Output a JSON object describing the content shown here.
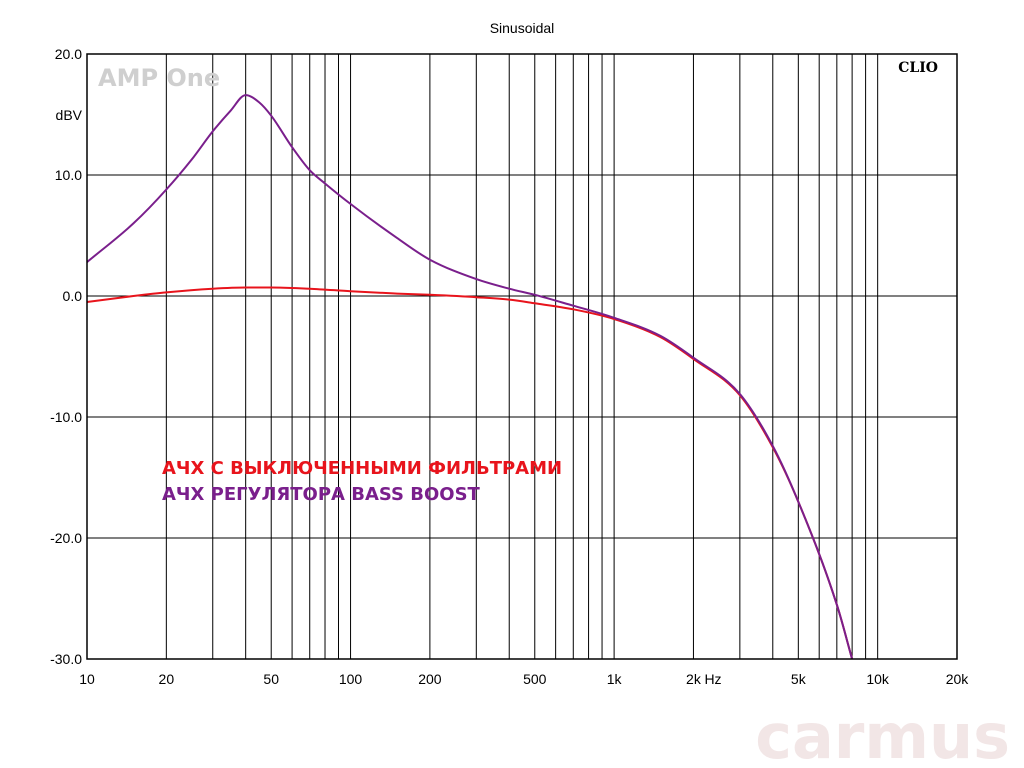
{
  "chart_data": {
    "type": "line",
    "title": "Sinusoidal",
    "ylabel": "dBV",
    "xlabel": "Hz",
    "x_scale": "log",
    "xlim": [
      10,
      20000
    ],
    "ylim": [
      -30,
      20
    ],
    "grid": true,
    "x_tick_labels": [
      {
        "x": 10,
        "label": "10"
      },
      {
        "x": 20,
        "label": "20"
      },
      {
        "x": 50,
        "label": "50"
      },
      {
        "x": 100,
        "label": "100"
      },
      {
        "x": 200,
        "label": "200"
      },
      {
        "x": 500,
        "label": "500"
      },
      {
        "x": 1000,
        "label": "1k"
      },
      {
        "x": 2000,
        "label": "2k"
      },
      {
        "x": 5000,
        "label": "5k"
      },
      {
        "x": 10000,
        "label": "10k"
      },
      {
        "x": 20000,
        "label": "20k"
      }
    ],
    "y_tick_labels": [
      {
        "y": 20,
        "label": "20.0"
      },
      {
        "y": 10,
        "label": "10.0"
      },
      {
        "y": 0,
        "label": "0.0"
      },
      {
        "y": -10,
        "label": "-10.0"
      },
      {
        "y": -20,
        "label": "-20.0"
      },
      {
        "y": -30,
        "label": "-30.0"
      }
    ],
    "brand_label": "CLIO",
    "device_label": "AMP One",
    "watermark": "carmus",
    "series": [
      {
        "name": "АЧХ С ВЫКЛЮЧЕННЫМИ ФИЛЬТРАМИ",
        "color": "#e8141c",
        "x": [
          10,
          15,
          20,
          30,
          40,
          50,
          70,
          100,
          150,
          200,
          300,
          400,
          500,
          700,
          1000,
          1500,
          2000,
          3000,
          4000,
          5000,
          7000,
          8000
        ],
        "y": [
          -0.5,
          0.0,
          0.3,
          0.6,
          0.7,
          0.7,
          0.6,
          0.4,
          0.2,
          0.1,
          -0.1,
          -0.3,
          -0.6,
          -1.1,
          -1.9,
          -3.4,
          -5.2,
          -8.2,
          -12.5,
          -17.0,
          -25.5,
          -30.0
        ]
      },
      {
        "name": "АЧХ РЕГУЛЯТОРА BASS BOOST",
        "color": "#7a1f8c",
        "x": [
          10,
          15,
          20,
          25,
          30,
          35,
          40,
          45,
          50,
          60,
          70,
          80,
          100,
          150,
          200,
          300,
          400,
          500,
          700,
          1000,
          1500,
          2000,
          3000,
          4000,
          5000,
          7000,
          8000
        ],
        "y": [
          2.8,
          6.0,
          8.8,
          11.3,
          13.6,
          15.3,
          16.6,
          16.0,
          14.9,
          12.3,
          10.4,
          9.3,
          7.6,
          4.8,
          3.0,
          1.4,
          0.6,
          0.1,
          -0.8,
          -1.8,
          -3.3,
          -5.1,
          -8.1,
          -12.4,
          -17.0,
          -25.5,
          -30.0
        ]
      }
    ]
  }
}
